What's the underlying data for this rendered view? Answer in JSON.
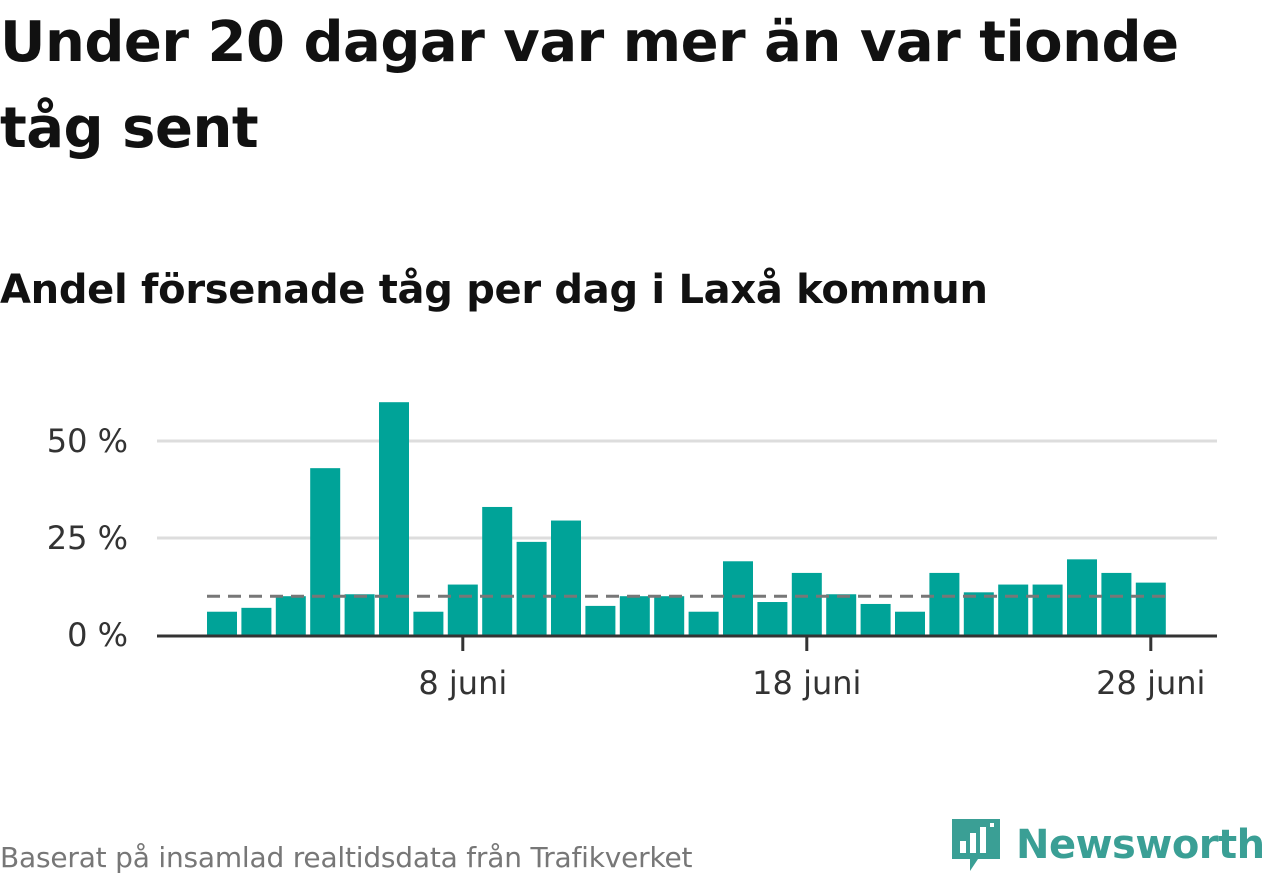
{
  "title": "Under 20 dagar var mer än var tionde tåg sent",
  "subtitle": "Andel försenade tåg per dag i Laxå kommun",
  "footer": {
    "source": "Baserat på insamlad realtidsdata från Trafikverket"
  },
  "brand": {
    "name": "Newsworthy",
    "color": "#3a9f95",
    "icon": "bar-chart-speech-bubble-icon"
  },
  "colors": {
    "bar": "#00a398",
    "reference_line": "#777777",
    "grid": "#dddddd",
    "axis": "#333333"
  },
  "chart_data": {
    "type": "bar",
    "x": [
      "2023-06-01",
      "2023-06-02",
      "2023-06-03",
      "2023-06-04",
      "2023-06-05",
      "2023-06-06",
      "2023-06-07",
      "2023-06-08",
      "2023-06-09",
      "2023-06-10",
      "2023-06-11",
      "2023-06-12",
      "2023-06-13",
      "2023-06-14",
      "2023-06-15",
      "2023-06-16",
      "2023-06-17",
      "2023-06-18",
      "2023-06-19",
      "2023-06-20",
      "2023-06-21",
      "2023-06-22",
      "2023-06-23",
      "2023-06-24",
      "2023-06-25",
      "2023-06-26",
      "2023-06-27",
      "2023-06-28"
    ],
    "values": [
      6,
      7,
      10,
      43,
      10.5,
      60,
      6,
      13,
      33,
      24,
      29.5,
      7.5,
      10,
      10,
      6,
      19,
      8.5,
      16,
      10.5,
      8,
      6,
      16,
      11,
      13,
      13,
      19.5,
      16,
      13.5
    ],
    "unit": "%",
    "ylim": [
      0,
      60
    ],
    "yticks": [
      {
        "value": 0,
        "label": "0 %"
      },
      {
        "value": 25,
        "label": "25 %"
      },
      {
        "value": 50,
        "label": "50 %"
      }
    ],
    "xticks": [
      {
        "date": "2023-06-08",
        "label": "8 juni"
      },
      {
        "date": "2023-06-18",
        "label": "18 juni"
      },
      {
        "date": "2023-06-28",
        "label": "28 juni"
      }
    ],
    "reference_line": {
      "value": 10,
      "style": "dashed"
    },
    "grid": true,
    "legend": "none",
    "xlabel": "",
    "ylabel": ""
  }
}
